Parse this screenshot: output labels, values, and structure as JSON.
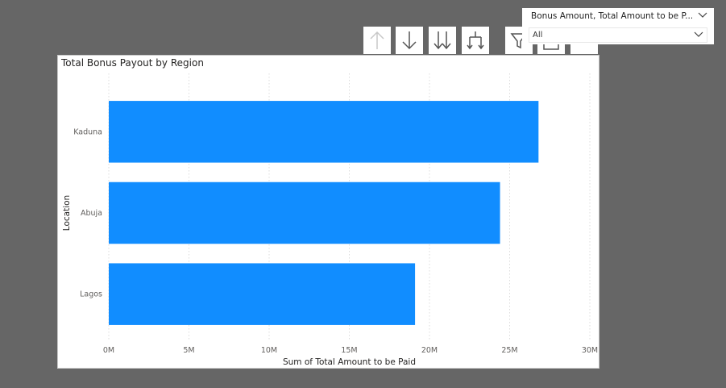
{
  "toolbar": {
    "buttons": [
      {
        "name": "drill-up-icon",
        "enabled": false
      },
      {
        "name": "drill-down-icon",
        "enabled": true
      },
      {
        "name": "next-level-icon",
        "enabled": true
      },
      {
        "name": "expand-hierarchy-icon",
        "enabled": true
      },
      {
        "name": "filter-icon",
        "enabled": true
      },
      {
        "name": "focus-mode-icon",
        "enabled": true
      },
      {
        "name": "more-options-icon",
        "enabled": true
      }
    ]
  },
  "filter": {
    "title": "Bonus Amount, Total Amount to be P...",
    "value": "All",
    "chevron_icon": "chevron-down-icon"
  },
  "colors": {
    "bar": "#118DFF",
    "background": "#666666",
    "grid": "#dcdcdc"
  },
  "chart_data": {
    "type": "bar",
    "orientation": "horizontal",
    "title": "Total Bonus Payout by Region",
    "xlabel": "Sum of Total Amount to be Paid",
    "ylabel": "Location",
    "categories": [
      "Kaduna",
      "Abuja",
      "Lagos"
    ],
    "values": [
      26800000,
      24400000,
      19100000
    ],
    "xlim": [
      0,
      30000000
    ],
    "xticks": [
      {
        "value": 0,
        "label": "0M"
      },
      {
        "value": 5000000,
        "label": "5M"
      },
      {
        "value": 10000000,
        "label": "10M"
      },
      {
        "value": 15000000,
        "label": "15M"
      },
      {
        "value": 20000000,
        "label": "20M"
      },
      {
        "value": 25000000,
        "label": "25M"
      },
      {
        "value": 30000000,
        "label": "30M"
      }
    ],
    "grid": true,
    "legend": false
  }
}
